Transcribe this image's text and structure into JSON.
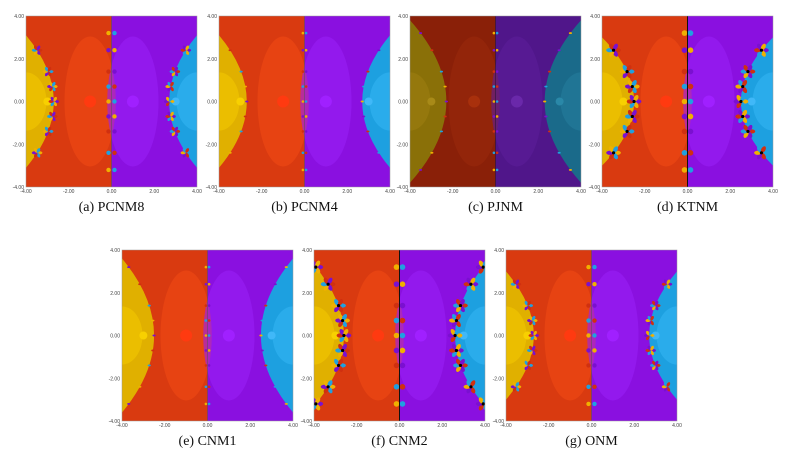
{
  "axis": {
    "x_ticks": [
      "-4.00",
      "-2.00",
      "0.00",
      "2.00",
      "4.00"
    ],
    "y_ticks": [
      "4.00",
      "2.00",
      "0.00",
      "-2.00",
      "-4.00"
    ],
    "range": [
      -4,
      4
    ]
  },
  "figures": [
    {
      "id": "a",
      "caption": "(a)  PCNM8",
      "tag": "a",
      "method": "PCNM8",
      "dark": false,
      "width": 1.3,
      "reach": 2.7,
      "flowers": 1
    },
    {
      "id": "b",
      "caption": "(b)  PCNM4",
      "tag": "b",
      "method": "PCNM4",
      "dark": false,
      "width": 1.3,
      "reach": 2.7,
      "flowers": 0
    },
    {
      "id": "c",
      "caption": "(c)  PJNM",
      "tag": "c",
      "method": "PJNM",
      "dark": true,
      "width": 1.7,
      "reach": 3.4,
      "flowers": 0
    },
    {
      "id": "d",
      "caption": "(d)  KTNM",
      "tag": "d",
      "method": "KTNM",
      "dark": false,
      "width": 1.5,
      "reach": 2.6,
      "flowers": 2
    },
    {
      "id": "e",
      "caption": "(e)  CNM1",
      "tag": "e",
      "method": "CNM1",
      "dark": false,
      "width": 1.5,
      "reach": 3.2,
      "flowers": 0
    },
    {
      "id": "f",
      "caption": "(f)  CNM2",
      "tag": "f",
      "method": "CNM2",
      "dark": false,
      "width": 1.4,
      "reach": 2.9,
      "flowers": 2
    },
    {
      "id": "g",
      "caption": "(g)  ONM",
      "tag": "g",
      "method": "ONM",
      "dark": false,
      "width": 1.3,
      "reach": 2.6,
      "flowers": 1
    }
  ],
  "colors": {
    "red": "#d93a10",
    "red_light": "#f04a14",
    "purple": "#8a10e0",
    "purple_light": "#9a20f5",
    "yellow": "#e0b000",
    "yellow_light": "#f0c400",
    "blue": "#1da0e0",
    "blue_light": "#30b0f0",
    "red_dark": "#8a2008",
    "purple_dark": "#50168a",
    "yellow_dark": "#8a7008",
    "blue_dark": "#1a6a8a"
  }
}
